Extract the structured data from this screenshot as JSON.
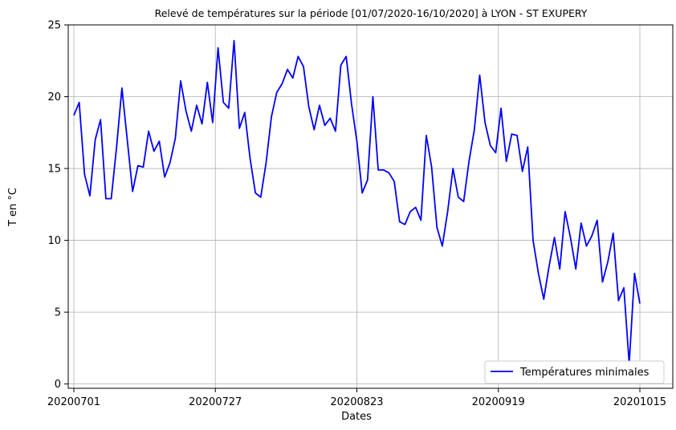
{
  "chart_data": {
    "type": "line",
    "title": "Relevé de températures sur la période [01/07/2020-16/10/2020] à LYON - ST EXUPERY",
    "xlabel": "Dates",
    "ylabel": "T en °C",
    "x_ticks": [
      "20200701",
      "20200727",
      "20200823",
      "20200919",
      "20201015"
    ],
    "y_ticks": [
      0,
      5,
      10,
      15,
      20,
      25
    ],
    "ylim": [
      -0.3,
      25
    ],
    "grid": true,
    "legend_position": "lower-right",
    "series": [
      {
        "name": "Températures minimales",
        "color": "#0000ff",
        "values": [
          18.7,
          19.6,
          14.6,
          13.1,
          17.0,
          18.4,
          12.9,
          12.9,
          16.5,
          20.6,
          17.0,
          13.4,
          15.2,
          15.1,
          17.6,
          16.2,
          16.9,
          14.4,
          15.4,
          17.1,
          21.1,
          19.0,
          17.6,
          19.4,
          18.1,
          21.0,
          18.2,
          23.4,
          19.6,
          19.2,
          23.9,
          17.8,
          18.9,
          15.7,
          13.3,
          13.0,
          15.4,
          18.6,
          20.3,
          20.9,
          21.9,
          21.3,
          22.8,
          22.1,
          19.3,
          17.7,
          19.4,
          18.0,
          18.5,
          17.6,
          22.2,
          22.8,
          19.5,
          16.9,
          13.3,
          14.2,
          20.0,
          14.9,
          14.9,
          14.7,
          14.1,
          11.3,
          11.1,
          12.0,
          12.3,
          11.4,
          17.3,
          15.1,
          10.9,
          9.6,
          12.0,
          15.0,
          13.0,
          12.7,
          15.5,
          17.7,
          21.5,
          18.2,
          16.6,
          16.1,
          19.2,
          15.5,
          17.4,
          17.3,
          14.8,
          16.5,
          10.0,
          7.7,
          5.9,
          8.2,
          10.2,
          8.0,
          12.0,
          10.2,
          8.0,
          11.2,
          9.6,
          10.3,
          11.4,
          7.1,
          8.5,
          10.5,
          5.8,
          6.7,
          1.4,
          7.7,
          5.6
        ]
      }
    ]
  }
}
